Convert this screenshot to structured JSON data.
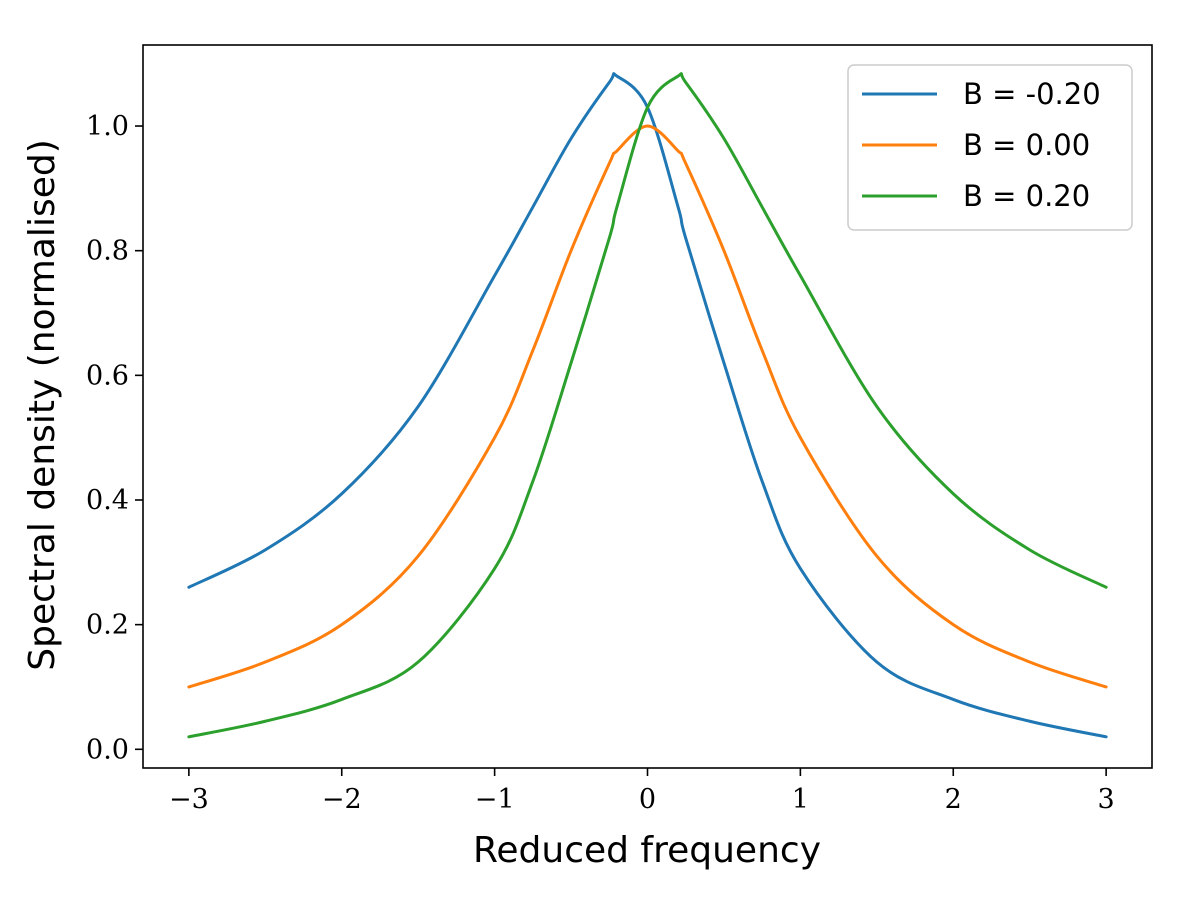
{
  "chart_data": {
    "type": "line",
    "title": "",
    "xlabel": "Reduced frequency",
    "ylabel": "Spectral density (normalised)",
    "xlim": [
      -3.3,
      3.3
    ],
    "ylim": [
      -0.03,
      1.13
    ],
    "xticks": [
      -3,
      -2,
      -1,
      0,
      1,
      2,
      3
    ],
    "xtick_labels": [
      "−3",
      "−2",
      "−1",
      "0",
      "1",
      "2",
      "3"
    ],
    "yticks": [
      0.0,
      0.2,
      0.4,
      0.6,
      0.8,
      1.0
    ],
    "ytick_labels": [
      "0.0",
      "0.2",
      "0.4",
      "0.6",
      "0.8",
      "1.0"
    ],
    "grid": false,
    "legend_position": "top-right",
    "x": [
      -3.0,
      -2.5,
      -2.0,
      -1.5,
      -1.0,
      -0.75,
      -0.5,
      -0.25,
      -0.2,
      0.0,
      0.2,
      0.25,
      0.5,
      0.75,
      1.0,
      1.5,
      2.0,
      2.5,
      3.0
    ],
    "series": [
      {
        "name": "B = -0.20",
        "color": "#1f77b4",
        "values": [
          0.26,
          0.32,
          0.41,
          0.55,
          0.76,
          0.87,
          0.98,
          1.07,
          1.08,
          1.03,
          0.87,
          0.82,
          0.62,
          0.43,
          0.29,
          0.14,
          0.08,
          0.045,
          0.02
        ]
      },
      {
        "name": "B = 0.00",
        "color": "#ff7f0e",
        "values": [
          0.1,
          0.14,
          0.2,
          0.31,
          0.5,
          0.64,
          0.8,
          0.94,
          0.96,
          1.0,
          0.96,
          0.94,
          0.8,
          0.64,
          0.5,
          0.31,
          0.2,
          0.14,
          0.1
        ]
      },
      {
        "name": "B = 0.20",
        "color": "#2ca02c",
        "values": [
          0.02,
          0.045,
          0.08,
          0.14,
          0.29,
          0.43,
          0.62,
          0.82,
          0.87,
          1.03,
          1.08,
          1.07,
          0.98,
          0.87,
          0.76,
          0.55,
          0.41,
          0.32,
          0.26
        ]
      }
    ]
  }
}
